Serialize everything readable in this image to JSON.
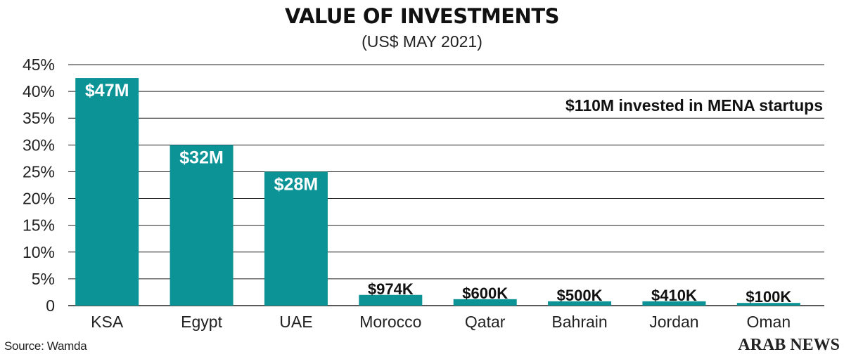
{
  "header": {
    "title": "VALUE OF INVESTMENTS",
    "subtitle": "(US$ MAY 2021)"
  },
  "footer": {
    "source": "Source: Wamda",
    "brand": "ARAB NEWS"
  },
  "colors": {
    "bar": "#0b9396",
    "grid": "#222222",
    "label_light": "#ffffff",
    "label_dark": "#111111"
  },
  "chart_data": {
    "type": "bar",
    "title": "VALUE OF INVESTMENTS",
    "subtitle": "(US$ MAY 2021)",
    "categories": [
      "KSA",
      "Egypt",
      "UAE",
      "Morocco",
      "Qatar",
      "Bahrain",
      "Jordan",
      "Oman"
    ],
    "values": [
      42.5,
      30,
      25,
      2,
      1.2,
      0.8,
      0.8,
      0.5
    ],
    "value_unit": "%",
    "data_labels": [
      "$47M",
      "$32M",
      "$28M",
      "$974K",
      "$600K",
      "$500K",
      "$410K",
      "$100K"
    ],
    "y_ticks": [
      "0",
      "5%",
      "10%",
      "15%",
      "20%",
      "25%",
      "30%",
      "35%",
      "40%",
      "45%"
    ],
    "ylim": [
      0,
      45
    ],
    "grid": true,
    "xlabel": "",
    "ylabel": "",
    "annotation": "$110M invested in MENA startups",
    "legend": "none"
  }
}
